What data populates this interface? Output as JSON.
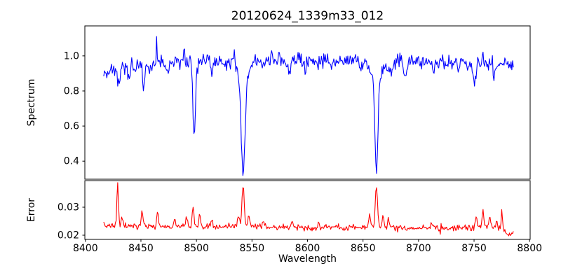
{
  "figure": {
    "background": "#ffffff",
    "axis_color": "#000000"
  },
  "chart_data": [
    {
      "type": "line",
      "panel": "spectrum",
      "title": "20120624_1339m33_012",
      "ylabel": "Spectrum",
      "line_color": "#0000ff",
      "xlim": [
        8399.5,
        8800.5
      ],
      "ylim": [
        0.297,
        1.171
      ],
      "yticks": [
        0.4,
        0.6,
        0.8,
        1.0
      ],
      "ytick_labels": [
        "0.4",
        "0.6",
        "0.8",
        "1.0"
      ],
      "x_start": 8416.5,
      "x_end": 8785.5,
      "x_step": 0.7,
      "grid": false,
      "legend": "none",
      "continuum_points": [
        [
          8416.5,
          0.905
        ],
        [
          8422,
          0.925
        ],
        [
          8430,
          0.93
        ],
        [
          8440,
          0.935
        ],
        [
          8450,
          0.945
        ],
        [
          8462,
          0.955
        ],
        [
          8475,
          0.965
        ],
        [
          8490,
          0.97
        ],
        [
          8510,
          0.972
        ],
        [
          8540,
          0.975
        ],
        [
          8570,
          0.977
        ],
        [
          8600,
          0.976
        ],
        [
          8640,
          0.975
        ],
        [
          8675,
          0.97
        ],
        [
          8705,
          0.963
        ],
        [
          8735,
          0.963
        ],
        [
          8760,
          0.965
        ],
        [
          8786,
          0.947
        ]
      ],
      "absorption_lines_center_depth_sigma": [
        [
          8430.5,
          0.1,
          0.9
        ],
        [
          8439,
          0.05,
          0.9
        ],
        [
          8452.5,
          0.11,
          0.9
        ],
        [
          8458,
          0.06,
          0.9
        ],
        [
          8474,
          0.04,
          0.9
        ],
        [
          8498,
          0.45,
          1.1
        ],
        [
          8514,
          0.09,
          1.1
        ],
        [
          8527,
          0.04,
          1.0
        ],
        [
          8542,
          0.55,
          1.7
        ],
        [
          8542,
          0.09,
          5.5
        ],
        [
          8560,
          0.04,
          1.0
        ],
        [
          8584,
          0.07,
          1.3
        ],
        [
          8598,
          0.04,
          1.0
        ],
        [
          8609,
          0.06,
          1.2
        ],
        [
          8621,
          0.04,
          1.0
        ],
        [
          8648,
          0.04,
          1.0
        ],
        [
          8662,
          0.54,
          1.5
        ],
        [
          8662,
          0.08,
          5.5
        ],
        [
          8675,
          0.07,
          1.2
        ],
        [
          8688,
          0.1,
          1.3
        ],
        [
          8713,
          0.05,
          1.0
        ],
        [
          8736,
          0.05,
          1.0
        ],
        [
          8750,
          0.08,
          1.2
        ],
        [
          8768,
          0.05,
          1.0
        ]
      ],
      "emission_spikes_center_amp": [
        [
          8464,
          0.16
        ],
        [
          8489,
          0.1
        ],
        [
          8534,
          0.09
        ],
        [
          8758,
          0.11
        ]
      ],
      "noise": {
        "seed": 42,
        "sigma": 0.022
      },
      "key_features": {
        "ca_triplet_lines_wavelength": [
          8498,
          8542,
          8662
        ],
        "line_core_flux": [
          0.52,
          0.335,
          0.35
        ],
        "continuum_level": 0.97,
        "max_flux_spike": [
          8464,
          1.13
        ]
      }
    },
    {
      "type": "line",
      "panel": "error",
      "ylabel": "Error",
      "xlabel": "Wavelength",
      "line_color": "#ff0000",
      "xlim": [
        8399.5,
        8800.5
      ],
      "ylim": [
        0.0185,
        0.0395
      ],
      "yticks": [
        0.02,
        0.03
      ],
      "ytick_labels": [
        "0.02",
        "0.03"
      ],
      "xticks": [
        8400,
        8450,
        8500,
        8550,
        8600,
        8650,
        8700,
        8750,
        8800
      ],
      "xtick_labels": [
        "8400",
        "8450",
        "8500",
        "8550",
        "8600",
        "8650",
        "8700",
        "8750",
        "8800"
      ],
      "x_start": 8416.5,
      "x_end": 8785.5,
      "x_step": 0.7,
      "grid": false,
      "legend": "none",
      "baseline_points": [
        [
          8416.5,
          0.0232
        ],
        [
          8430,
          0.0235
        ],
        [
          8445,
          0.0232
        ],
        [
          8460,
          0.0232
        ],
        [
          8475,
          0.023
        ],
        [
          8495,
          0.0233
        ],
        [
          8515,
          0.023
        ],
        [
          8535,
          0.0232
        ],
        [
          8555,
          0.0233
        ],
        [
          8575,
          0.0229
        ],
        [
          8600,
          0.0227
        ],
        [
          8625,
          0.0227
        ],
        [
          8650,
          0.023
        ],
        [
          8675,
          0.0229
        ],
        [
          8700,
          0.0227
        ],
        [
          8720,
          0.0224
        ],
        [
          8740,
          0.0227
        ],
        [
          8752,
          0.023
        ],
        [
          8762,
          0.0232
        ],
        [
          8772,
          0.0228
        ],
        [
          8778,
          0.0214
        ],
        [
          8781,
          0.0198
        ],
        [
          8784,
          0.0208
        ],
        [
          8786,
          0.0206
        ]
      ],
      "peaks_center_height_sigma": [
        [
          8429,
          0.0146,
          0.7
        ],
        [
          8433,
          0.0028,
          0.6
        ],
        [
          8451,
          0.0062,
          0.7
        ],
        [
          8465,
          0.0056,
          0.7
        ],
        [
          8480,
          0.0018,
          0.7
        ],
        [
          8491,
          0.0034,
          0.7
        ],
        [
          8497,
          0.0076,
          0.7
        ],
        [
          8503,
          0.005,
          0.7
        ],
        [
          8514,
          0.002,
          0.7
        ],
        [
          8538,
          0.0038,
          0.9
        ],
        [
          8542,
          0.0146,
          1.0
        ],
        [
          8547,
          0.004,
          0.8
        ],
        [
          8560,
          0.0018,
          0.8
        ],
        [
          8586,
          0.0022,
          0.8
        ],
        [
          8610,
          0.0018,
          0.8
        ],
        [
          8656,
          0.0048,
          0.9
        ],
        [
          8662,
          0.0148,
          1.0
        ],
        [
          8668,
          0.0038,
          0.8
        ],
        [
          8673,
          0.0032,
          0.7
        ],
        [
          8712,
          0.0018,
          0.8
        ],
        [
          8752,
          0.004,
          0.7
        ],
        [
          8758,
          0.0062,
          0.7
        ],
        [
          8764,
          0.0046,
          0.7
        ],
        [
          8770,
          0.0028,
          0.6
        ],
        [
          8775,
          0.007,
          0.6
        ]
      ],
      "noise": {
        "seed": 7,
        "sigma": 0.00055
      },
      "key_features": {
        "baseline_error": 0.023,
        "peak_error_wavelengths": [
          8429,
          8542,
          8662
        ],
        "peak_error_value": 0.0385
      }
    }
  ]
}
